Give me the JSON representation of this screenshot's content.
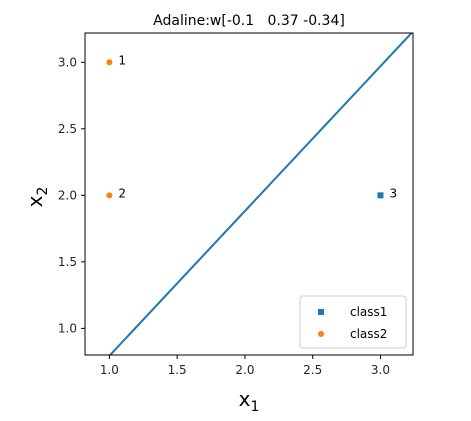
{
  "chart_data": {
    "type": "scatter",
    "title": "Adaline:w[-0.1   0.37 -0.34]",
    "xlabel": {
      "base": "x",
      "sub": "1"
    },
    "ylabel": {
      "base": "x",
      "sub": "2"
    },
    "xlim": [
      0.82,
      3.24
    ],
    "ylim": [
      0.8,
      3.22
    ],
    "xticks": [
      1.0,
      1.5,
      2.0,
      2.5,
      3.0
    ],
    "xtick_labels": [
      "1.0",
      "1.5",
      "2.0",
      "2.5",
      "3.0"
    ],
    "yticks": [
      1.0,
      1.5,
      2.0,
      2.5,
      3.0
    ],
    "ytick_labels": [
      "1.0",
      "1.5",
      "2.0",
      "2.5",
      "3.0"
    ],
    "grid": false,
    "legend_position": "lower-right",
    "series": [
      {
        "name": "class1",
        "marker": "square",
        "color": "#1f77b4",
        "points": [
          {
            "x": 3.0,
            "y": 2.0,
            "label": "3"
          }
        ]
      },
      {
        "name": "class2",
        "marker": "circle",
        "color": "#ff7f0e",
        "points": [
          {
            "x": 1.0,
            "y": 3.0,
            "label": "1"
          },
          {
            "x": 1.0,
            "y": 2.0,
            "label": "2"
          }
        ]
      }
    ],
    "decision_boundary": {
      "weights": [
        -0.1,
        0.37,
        -0.34
      ],
      "color": "#1f77b4"
    }
  }
}
